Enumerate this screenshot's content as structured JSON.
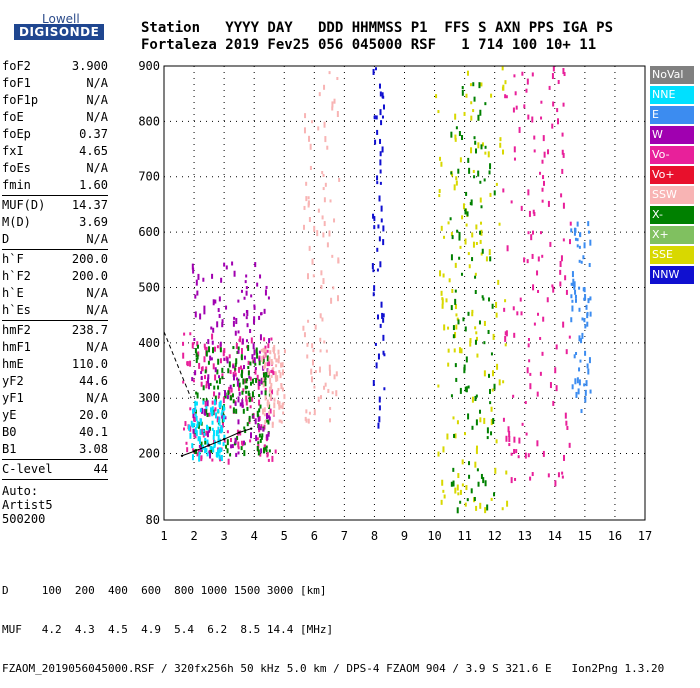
{
  "logo": {
    "top": "Lowell",
    "main": "DIGISONDE"
  },
  "header": {
    "row1": "Station   YYYY DAY   DDD HHMMSS P1  FFS S AXN PPS IGA PS",
    "row2": "Fortaleza 2019 Fev25 056 045000 RSF   1 714 100 10+ 11"
  },
  "params": [
    {
      "group": [
        {
          "name": "foF2",
          "value": "3.900"
        },
        {
          "name": "foF1",
          "value": "N/A"
        },
        {
          "name": "foF1p",
          "value": "N/A"
        },
        {
          "name": "foE",
          "value": "N/A"
        },
        {
          "name": "foEp",
          "value": "0.37"
        },
        {
          "name": "fxI",
          "value": "4.65"
        },
        {
          "name": "foEs",
          "value": "N/A"
        },
        {
          "name": "fmin",
          "value": "1.60"
        }
      ]
    },
    {
      "group": [
        {
          "name": "MUF(D)",
          "value": "14.37"
        },
        {
          "name": "M(D)",
          "value": "3.69"
        },
        {
          "name": "D",
          "value": "N/A"
        }
      ]
    },
    {
      "group": [
        {
          "name": "h`F",
          "value": "200.0"
        },
        {
          "name": "h`F2",
          "value": "200.0"
        },
        {
          "name": "h`E",
          "value": "N/A"
        },
        {
          "name": "h`Es",
          "value": "N/A"
        }
      ]
    },
    {
      "group": [
        {
          "name": "hmF2",
          "value": "238.7"
        },
        {
          "name": "hmF1",
          "value": "N/A"
        },
        {
          "name": "hmE",
          "value": "110.0"
        },
        {
          "name": "yF2",
          "value": "44.6"
        },
        {
          "name": "yF1",
          "value": "N/A"
        },
        {
          "name": "yE",
          "value": "20.0"
        },
        {
          "name": "B0",
          "value": "40.1"
        },
        {
          "name": "B1",
          "value": "3.08"
        }
      ]
    },
    {
      "group": [
        {
          "name": "C-level",
          "value": "44"
        }
      ]
    }
  ],
  "auto_label": "Auto:\nArtist5\n500200",
  "legend": [
    {
      "label": "NoVal",
      "color": "#808080"
    },
    {
      "label": "NNE",
      "color": "#00e0ff"
    },
    {
      "label": "E",
      "color": "#3c8cf0"
    },
    {
      "label": "W",
      "color": "#a000b0"
    },
    {
      "label": "Vo-",
      "color": "#e8209a"
    },
    {
      "label": "Vo+",
      "color": "#e8102c"
    },
    {
      "label": "SSW",
      "color": "#f8b4b4"
    },
    {
      "label": "X-",
      "color": "#008000"
    },
    {
      "label": "X+",
      "color": "#80c060"
    },
    {
      "label": "SSE",
      "color": "#d8d800"
    },
    {
      "label": "NNW",
      "color": "#1010d0"
    }
  ],
  "chart_data": {
    "type": "scatter",
    "title": "",
    "xlabel": "",
    "ylabel": "",
    "xlim": [
      1,
      17
    ],
    "ylim": [
      80,
      900
    ],
    "x_ticks": [
      1,
      2,
      3,
      4,
      5,
      6,
      7,
      8,
      9,
      10,
      11,
      12,
      13,
      14,
      15,
      16,
      17
    ],
    "y_ticks": [
      80,
      200,
      300,
      400,
      500,
      600,
      700,
      800,
      900
    ],
    "grid": "dotted",
    "trace": {
      "name": "",
      "x": [
        1.6,
        2.0,
        2.5,
        3.0,
        3.5,
        3.9
      ],
      "y": [
        196,
        204,
        215,
        226,
        238,
        245
      ]
    },
    "clusters": [
      {
        "x_range": [
          1.6,
          4.7
        ],
        "y_range": [
          190,
          420
        ],
        "color": "#e8209a"
      },
      {
        "x_range": [
          2.0,
          4.5
        ],
        "y_range": [
          200,
          400
        ],
        "color": "#008000"
      },
      {
        "x_range": [
          1.9,
          4.5
        ],
        "y_range": [
          200,
          550
        ],
        "color": "#a000b0"
      },
      {
        "x_range": [
          1.8,
          3.0
        ],
        "y_range": [
          195,
          300
        ],
        "color": "#00e0ff"
      },
      {
        "x_range": [
          4.2,
          5.0
        ],
        "y_range": [
          250,
          400
        ],
        "color": "#f8b4b4"
      },
      {
        "x_range": [
          5.6,
          6.8
        ],
        "y_range": [
          250,
          900
        ],
        "color": "#f8b4b4"
      },
      {
        "x_range": [
          7.9,
          8.3
        ],
        "y_range": [
          250,
          900
        ],
        "color": "#1010d0"
      },
      {
        "x_range": [
          10.0,
          12.4
        ],
        "y_range": [
          100,
          900
        ],
        "color": "#d8d800"
      },
      {
        "x_range": [
          10.5,
          12.0
        ],
        "y_range": [
          100,
          900
        ],
        "color": "#008000"
      },
      {
        "x_range": [
          12.2,
          14.5
        ],
        "y_range": [
          150,
          900
        ],
        "color": "#e8209a"
      },
      {
        "x_range": [
          14.5,
          15.2
        ],
        "y_range": [
          280,
          620
        ],
        "color": "#3c8cf0"
      }
    ]
  },
  "bottom": {
    "line1": "D     100  200  400  600  800 1000 1500 3000 [km]",
    "line2": "MUF   4.2  4.3  4.5  4.9  5.4  6.2  8.5 14.4 [MHz]",
    "line3": "FZAOM_2019056045000.RSF / 320fx256h 50 kHz 5.0 km / DPS-4 FZAOM 904 / 3.9 S 321.6 E   Ion2Png 1.3.20"
  }
}
